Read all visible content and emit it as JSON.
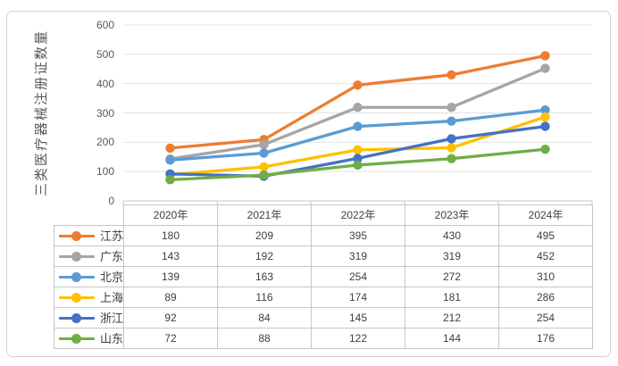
{
  "chart_data": {
    "type": "line",
    "title": "",
    "y_axis_title": "三类医疗器械注册证数量",
    "xlabel": "",
    "ylabel": "三类医疗器械注册证数量",
    "categories": [
      "2020年",
      "2021年",
      "2022年",
      "2023年",
      "2024年"
    ],
    "series": [
      {
        "name": "江苏",
        "color": "#ED7D31",
        "values": [
          180,
          209,
          395,
          430,
          495
        ]
      },
      {
        "name": "广东",
        "color": "#A5A5A5",
        "values": [
          143,
          192,
          319,
          319,
          452
        ]
      },
      {
        "name": "北京",
        "color": "#5B9BD5",
        "values": [
          139,
          163,
          254,
          272,
          310
        ]
      },
      {
        "name": "上海",
        "color": "#FFC000",
        "values": [
          89,
          116,
          174,
          181,
          286
        ]
      },
      {
        "name": "浙江",
        "color": "#4472C4",
        "values": [
          92,
          84,
          145,
          212,
          254
        ]
      },
      {
        "name": "山东",
        "color": "#70AD47",
        "values": [
          72,
          88,
          122,
          144,
          176
        ]
      }
    ],
    "ylim": [
      0,
      600
    ],
    "y_ticks": [
      0,
      100,
      200,
      300,
      400,
      500,
      600
    ],
    "grid": true,
    "legend_position": "data-table-left",
    "marker": "circle"
  },
  "style_colors": {
    "grid_line": "#e3e3e3",
    "axis_line": "#c6c6c6",
    "tick_label": "#595959",
    "table_border": "#c6c6c6",
    "table_text": "#404040",
    "chart_border": "#d4d4d4"
  }
}
